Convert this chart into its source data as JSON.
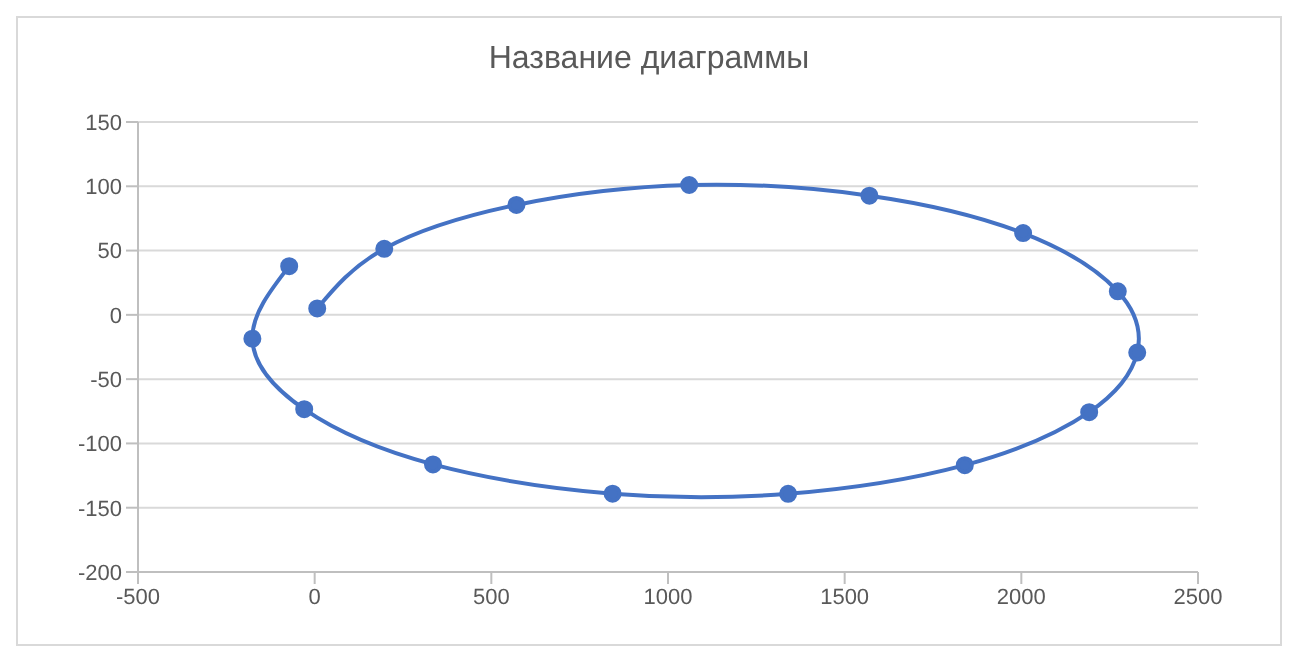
{
  "chart_data": {
    "type": "line",
    "title": "Название диаграммы",
    "x": [
      7.22,
      197,
      571,
      1060,
      1570,
      2005,
      2273,
      2328,
      2192,
      1840,
      1340,
      843.2,
      334.9,
      -29.6,
      -176.3,
      -72.1
    ],
    "series": [
      {
        "color": "#4472c4",
        "values": [
          4.978,
          51.4,
          85.5,
          101,
          92.7,
          63.6,
          18.3,
          -29.3,
          -75.7,
          -116.9,
          -139.2,
          -139.1,
          -116.3,
          -73.4,
          -18.5,
          37.9
        ]
      }
    ],
    "xlim": [
      -500,
      2500
    ],
    "xticks": [
      -500,
      0,
      500,
      1000,
      1500,
      2000,
      2500
    ],
    "ylim": [
      -200,
      150
    ],
    "yticks": [
      -200,
      -150,
      -100,
      -50,
      0,
      50,
      100,
      150
    ],
    "grid": "y",
    "marker": "circle",
    "line_style": "solid"
  }
}
